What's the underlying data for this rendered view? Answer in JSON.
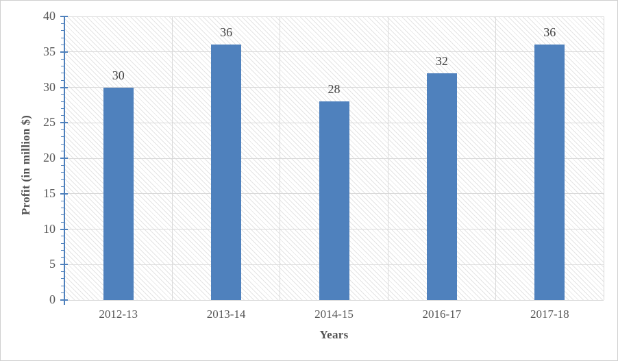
{
  "chart_data": {
    "type": "bar",
    "categories": [
      "2012-13",
      "2013-14",
      "2014-15",
      "2016-17",
      "2017-18"
    ],
    "values": [
      30,
      36,
      28,
      32,
      36
    ],
    "data_labels": [
      "30",
      "36",
      "28",
      "32",
      "36"
    ],
    "title": "",
    "xlabel": "Years",
    "ylabel": "Profit (in million $)",
    "ylim": [
      0,
      40
    ],
    "ytick_step": 5,
    "ytick_labels": [
      "0",
      "5",
      "10",
      "15",
      "20",
      "25",
      "30",
      "35",
      "40"
    ],
    "minor_tick_step": 1,
    "grid": true,
    "legend": "none",
    "colors": {
      "bar": "#4F81BD",
      "axis": "#4E80BC",
      "gridline": "#d9d9d9",
      "data_label": "#404040",
      "tick_label": "#595959",
      "axis_title": "#525252",
      "plot_hatch": "#e4e4e4",
      "background": "#ffffff"
    }
  }
}
